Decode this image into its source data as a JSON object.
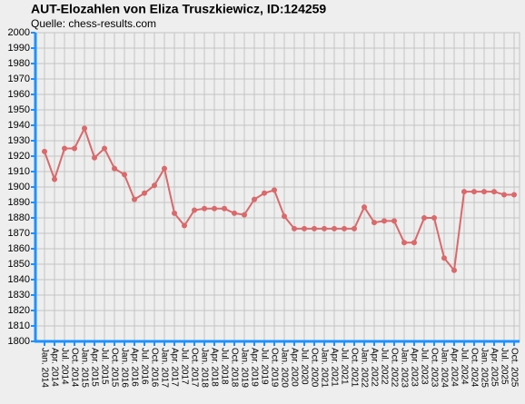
{
  "chart_data": {
    "type": "line",
    "title": "AUT-Elozahlen von Eliza Truszkiewicz, ID:124259",
    "subtitle": "Quelle: chess-results.com",
    "categories": [
      "Jan. 2014",
      "Apr. 2014",
      "Jul. 2014",
      "Oct. 2014",
      "Jan. 2015",
      "Apr. 2015",
      "Jul. 2015",
      "Oct. 2015",
      "Jan. 2016",
      "Apr. 2016",
      "Jul. 2016",
      "Oct. 2016",
      "Jan. 2017",
      "Apr. 2017",
      "Jul. 2017",
      "Oct. 2017",
      "Jan. 2018",
      "Apr. 2018",
      "Jul. 2018",
      "Oct. 2018",
      "Jan. 2019",
      "Apr. 2019",
      "Jul. 2019",
      "Oct. 2019",
      "Jan. 2020",
      "Apr. 2020",
      "Jul. 2020",
      "Oct. 2020",
      "Jan. 2021",
      "Apr. 2021",
      "Jul. 2021",
      "Oct. 2021",
      "Jan. 2022",
      "Apr. 2022",
      "Jul. 2022",
      "Oct. 2022",
      "Jan. 2023",
      "Apr. 2023",
      "Jul. 2023",
      "Oct. 2023",
      "Jan. 2024",
      "Apr. 2024",
      "Jul. 2024",
      "Oct. 2024",
      "Jan. 2025",
      "Apr. 2025",
      "Jul. 2025",
      "Oct. 2025"
    ],
    "values": [
      1923,
      1905,
      1925,
      1925,
      1938,
      1919,
      1925,
      1912,
      1908,
      1892,
      1896,
      1901,
      1912,
      1883,
      1875,
      1885,
      1886,
      1886,
      1886,
      1883,
      1882,
      1892,
      1896,
      1898,
      1881,
      1873,
      1873,
      1873,
      1873,
      1873,
      1873,
      1873,
      1887,
      1877,
      1878,
      1878,
      1864,
      1864,
      1880,
      1880,
      1854,
      1846,
      1897,
      1897,
      1897,
      1897,
      1895,
      1895
    ],
    "color": "#d9696b",
    "ylim": [
      1800,
      2000
    ],
    "yticks": [
      1800,
      1810,
      1820,
      1830,
      1840,
      1850,
      1860,
      1870,
      1880,
      1890,
      1900,
      1910,
      1920,
      1930,
      1940,
      1950,
      1960,
      1970,
      1980,
      1990,
      2000
    ],
    "grid": true
  }
}
